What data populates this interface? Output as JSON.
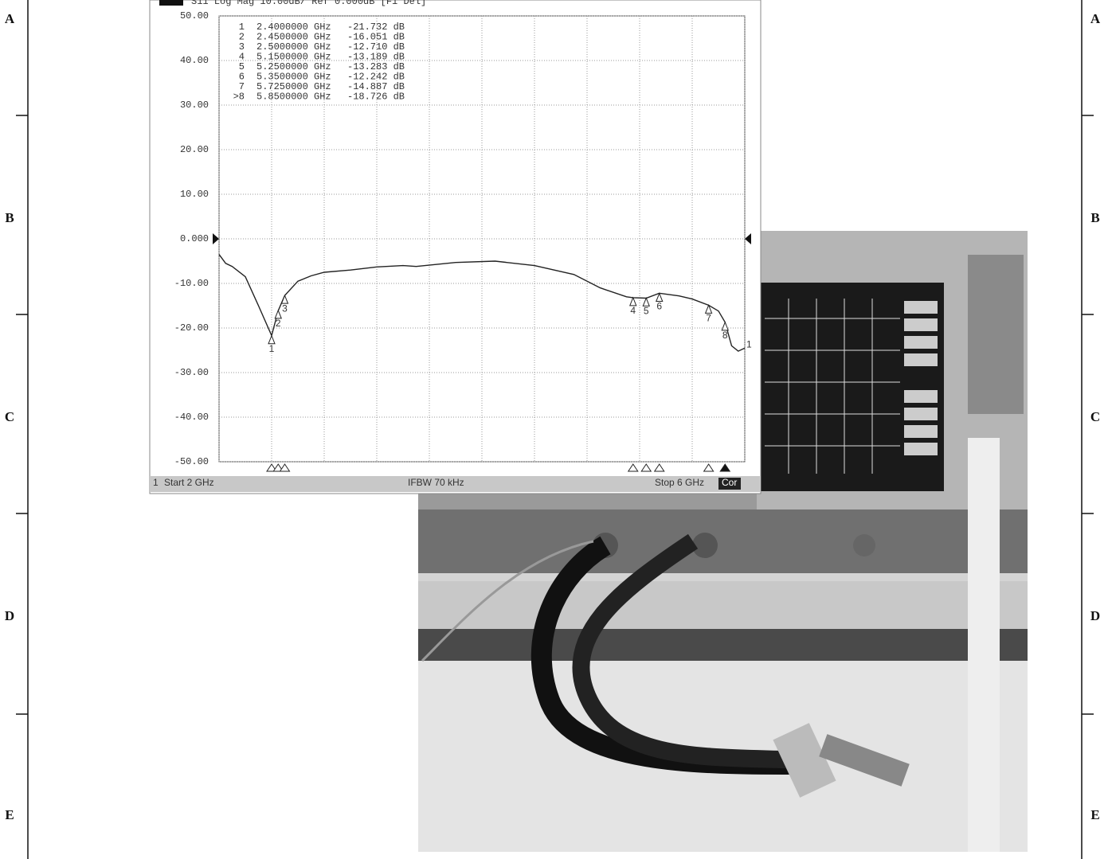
{
  "frame": {
    "letters": [
      "A",
      "B",
      "C",
      "D",
      "E"
    ]
  },
  "chart_data": {
    "type": "line",
    "title": "S11 Log Mag 10.00dB/ Ref 0.000dB [F1 Del]",
    "xlim": [
      2,
      6
    ],
    "xticks": [
      2,
      2.4,
      2.8,
      3.2,
      3.6,
      4,
      4.4,
      4.8,
      5.2,
      5.6,
      6
    ],
    "ylim": [
      -50,
      50
    ],
    "yticks": [
      {
        "value": 50,
        "label": "50.00"
      },
      {
        "value": 40,
        "label": "40.00"
      },
      {
        "value": 30,
        "label": "30.00"
      },
      {
        "value": 20,
        "label": "20.00"
      },
      {
        "value": 10,
        "label": "10.00"
      },
      {
        "value": 0,
        "label": "0.000"
      },
      {
        "value": -10,
        "label": "-10.00"
      },
      {
        "value": -20,
        "label": "-20.00"
      },
      {
        "value": -30,
        "label": "-30.00"
      },
      {
        "value": -40,
        "label": "-40.00"
      },
      {
        "value": -50,
        "label": "-50.00"
      }
    ],
    "grid": true,
    "series": [
      {
        "name": "1",
        "color": "#222222",
        "x": [
          2.0,
          2.05,
          2.1,
          2.2,
          2.3,
          2.4,
          2.45,
          2.5,
          2.6,
          2.7,
          2.8,
          3.0,
          3.2,
          3.4,
          3.5,
          3.8,
          4.1,
          4.4,
          4.7,
          4.9,
          5.1,
          5.15,
          5.25,
          5.35,
          5.5,
          5.6,
          5.725,
          5.8,
          5.85,
          5.9,
          5.95,
          6.0
        ],
        "values": [
          -3.5,
          -5.5,
          -6.2,
          -8.5,
          -15,
          -21.7,
          -16.1,
          -12.7,
          -9.5,
          -8.3,
          -7.5,
          -7,
          -6.3,
          -6,
          -6.2,
          -5.3,
          -5,
          -6,
          -8,
          -11,
          -13,
          -13.2,
          -13.3,
          -12.2,
          -12.8,
          -13.5,
          -14.9,
          -16.2,
          -18.7,
          -24,
          -25.2,
          -24.5
        ]
      }
    ],
    "markers": {
      "table_ids": [
        "1",
        "2",
        "3",
        "4",
        "5",
        "6",
        "7",
        ">8"
      ],
      "names": [
        "1",
        "2",
        "3",
        "4",
        "5",
        "6",
        "7",
        "8"
      ],
      "x": [
        2.4,
        2.45,
        2.5,
        5.15,
        5.25,
        5.35,
        5.725,
        5.85
      ],
      "x_labels": [
        "2.4000000 GHz",
        "2.4500000 GHz",
        "2.5000000 GHz",
        "5.1500000 GHz",
        "5.2500000 GHz",
        "5.3500000 GHz",
        "5.7250000 GHz",
        "5.8500000 GHz"
      ],
      "values": [
        -21.732,
        -16.051,
        -12.71,
        -13.189,
        -13.283,
        -12.242,
        -14.887,
        -18.726
      ],
      "value_labels": [
        "-21.732 dB",
        "-16.051 dB",
        "-12.710 dB",
        "-13.189 dB",
        "-13.283 dB",
        "-12.242 dB",
        "-14.887 dB",
        "-18.726 dB"
      ]
    },
    "footer": {
      "channel": "1",
      "start": "Start 2 GHz",
      "ifbw": "IFBW 70 kHz",
      "stop": "Stop 6 GHz",
      "cor": "Cor"
    }
  }
}
